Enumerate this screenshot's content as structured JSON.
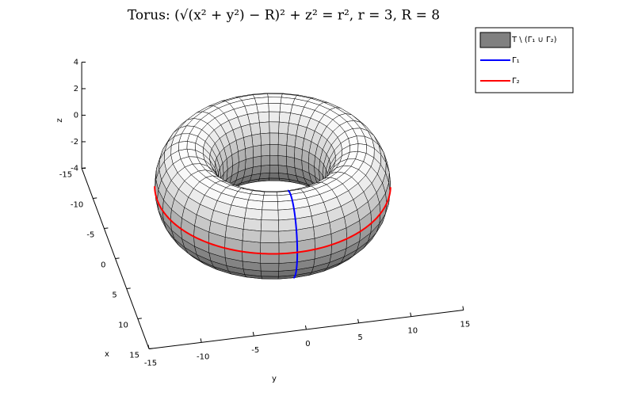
{
  "chart_data": {
    "type": "surface3d",
    "title": "Torus: (√(x² + y²) − R)² + z² = r², r = 3, R = 8",
    "r": 3,
    "R": 8,
    "colormap": "gray",
    "xlabel": "x",
    "ylabel": "y",
    "zlabel": "z",
    "xlim": [
      -15,
      15
    ],
    "ylim": [
      -15,
      15
    ],
    "zlim": [
      -4,
      4
    ],
    "xticks": [
      -15,
      -10,
      -5,
      0,
      5,
      10,
      15
    ],
    "yticks": [
      -15,
      -10,
      -5,
      0,
      5,
      10,
      15
    ],
    "zticks": [
      -4,
      -2,
      0,
      2,
      4
    ],
    "legend": "top-right",
    "series": [
      {
        "name": "T \\ (Γ₁ ∪ Γ₂)",
        "color": "#808080"
      },
      {
        "name": "Γ₁",
        "color": "#0000ff"
      },
      {
        "name": "Γ₂",
        "color": "#ff0000"
      }
    ]
  }
}
